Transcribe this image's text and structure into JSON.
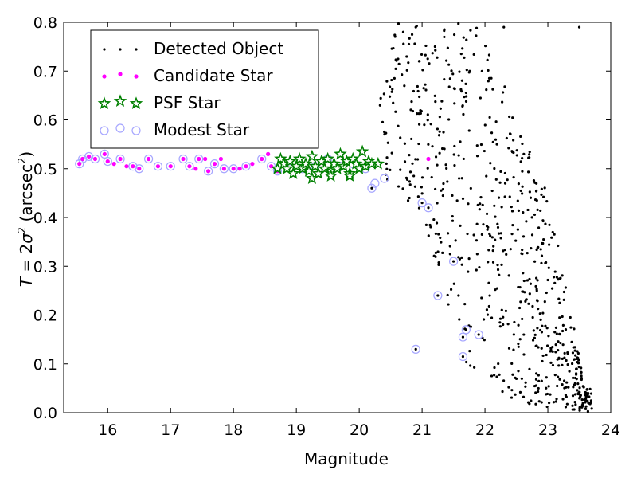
{
  "chart_data": {
    "type": "scatter",
    "xlabel": "Magnitude",
    "ylabel_parts": {
      "T": "T",
      "eq": " = 2",
      "sigma": "σ",
      "sq": "2",
      "unit_open": " (arcsec",
      "unit_sq": "2",
      "unit_close": ")"
    },
    "xlim": [
      15.3,
      24.0
    ],
    "ylim": [
      0.0,
      0.8
    ],
    "xticks": [
      16,
      17,
      18,
      19,
      20,
      21,
      22,
      23,
      24
    ],
    "yticks": [
      0.0,
      0.1,
      0.2,
      0.3,
      0.4,
      0.5,
      0.6,
      0.7,
      0.8
    ],
    "legend_location": "upper-left",
    "series": [
      {
        "name": "Detected Object",
        "marker": "dot",
        "color": "#000000",
        "generated": {
          "count": 700,
          "x_range": [
            20.3,
            23.7
          ],
          "y_upper": [
            [
              20.3,
              0.8
            ],
            [
              22.0,
              0.8
            ],
            [
              22.5,
              0.6
            ],
            [
              23.0,
              0.45
            ],
            [
              23.6,
              0.05
            ]
          ],
          "y_lower": [
            [
              20.3,
              0.48
            ],
            [
              21.0,
              0.4
            ],
            [
              21.7,
              0.1
            ],
            [
              22.5,
              0.02
            ],
            [
              23.7,
              0.0
            ]
          ]
        },
        "points": [
          [
            21.0,
            0.43
          ],
          [
            21.1,
            0.42
          ],
          [
            20.2,
            0.46
          ],
          [
            20.9,
            0.13
          ],
          [
            21.5,
            0.31
          ],
          [
            21.25,
            0.24
          ],
          [
            21.7,
            0.17
          ],
          [
            21.9,
            0.16
          ],
          [
            21.65,
            0.155
          ],
          [
            21.65,
            0.115
          ],
          [
            23.5,
            0.79
          ],
          [
            22.3,
            0.79
          ],
          [
            20.9,
            0.79
          ]
        ]
      },
      {
        "name": "Candidate Star",
        "marker": "circle-small",
        "color": "#ff00ff",
        "points": [
          [
            15.55,
            0.51
          ],
          [
            15.6,
            0.52
          ],
          [
            15.7,
            0.525
          ],
          [
            15.8,
            0.52
          ],
          [
            15.95,
            0.53
          ],
          [
            16.0,
            0.515
          ],
          [
            16.1,
            0.51
          ],
          [
            16.2,
            0.52
          ],
          [
            16.3,
            0.505
          ],
          [
            16.4,
            0.505
          ],
          [
            16.5,
            0.5
          ],
          [
            16.65,
            0.52
          ],
          [
            16.8,
            0.505
          ],
          [
            17.0,
            0.505
          ],
          [
            17.2,
            0.52
          ],
          [
            17.3,
            0.505
          ],
          [
            17.45,
            0.52
          ],
          [
            17.55,
            0.52
          ],
          [
            17.7,
            0.51
          ],
          [
            17.8,
            0.52
          ],
          [
            17.85,
            0.5
          ],
          [
            17.6,
            0.495
          ],
          [
            17.4,
            0.5
          ],
          [
            18.0,
            0.5
          ],
          [
            18.1,
            0.5
          ],
          [
            18.2,
            0.505
          ],
          [
            18.3,
            0.51
          ],
          [
            18.45,
            0.52
          ],
          [
            18.55,
            0.53
          ],
          [
            18.6,
            0.505
          ],
          [
            18.7,
            0.495
          ],
          [
            21.1,
            0.52
          ]
        ]
      },
      {
        "name": "PSF Star",
        "marker": "star",
        "color": "#008000",
        "points": [
          [
            18.7,
            0.5
          ],
          [
            18.75,
            0.52
          ],
          [
            18.8,
            0.51
          ],
          [
            18.85,
            0.5
          ],
          [
            18.9,
            0.515
          ],
          [
            18.95,
            0.49
          ],
          [
            19.0,
            0.505
          ],
          [
            19.05,
            0.52
          ],
          [
            19.1,
            0.5
          ],
          [
            19.15,
            0.51
          ],
          [
            19.2,
            0.495
          ],
          [
            19.25,
            0.525
          ],
          [
            19.3,
            0.505
          ],
          [
            19.35,
            0.49
          ],
          [
            19.4,
            0.515
          ],
          [
            19.45,
            0.5
          ],
          [
            19.5,
            0.52
          ],
          [
            19.55,
            0.495
          ],
          [
            19.6,
            0.51
          ],
          [
            19.65,
            0.5
          ],
          [
            19.7,
            0.53
          ],
          [
            19.75,
            0.505
          ],
          [
            19.8,
            0.515
          ],
          [
            19.85,
            0.49
          ],
          [
            19.9,
            0.52
          ],
          [
            19.95,
            0.51
          ],
          [
            20.0,
            0.5
          ],
          [
            20.05,
            0.535
          ],
          [
            20.1,
            0.505
          ],
          [
            20.15,
            0.515
          ],
          [
            20.2,
            0.51
          ],
          [
            20.3,
            0.51
          ],
          [
            19.25,
            0.48
          ],
          [
            19.55,
            0.485
          ],
          [
            19.85,
            0.485
          ]
        ]
      },
      {
        "name": "Modest Star",
        "marker": "ring",
        "color": "#a6a6ff",
        "points": [
          [
            15.55,
            0.51
          ],
          [
            15.6,
            0.52
          ],
          [
            15.7,
            0.525
          ],
          [
            15.8,
            0.52
          ],
          [
            15.95,
            0.53
          ],
          [
            16.0,
            0.515
          ],
          [
            16.2,
            0.52
          ],
          [
            16.4,
            0.505
          ],
          [
            16.5,
            0.5
          ],
          [
            16.65,
            0.52
          ],
          [
            16.8,
            0.505
          ],
          [
            17.0,
            0.505
          ],
          [
            17.2,
            0.52
          ],
          [
            17.3,
            0.505
          ],
          [
            17.45,
            0.52
          ],
          [
            17.6,
            0.495
          ],
          [
            17.7,
            0.51
          ],
          [
            17.85,
            0.5
          ],
          [
            18.0,
            0.5
          ],
          [
            18.2,
            0.505
          ],
          [
            18.45,
            0.52
          ],
          [
            18.6,
            0.505
          ],
          [
            18.7,
            0.495
          ],
          [
            18.9,
            0.5
          ],
          [
            19.1,
            0.5
          ],
          [
            19.3,
            0.505
          ],
          [
            19.5,
            0.52
          ],
          [
            19.7,
            0.505
          ],
          [
            19.9,
            0.51
          ],
          [
            20.1,
            0.5
          ],
          [
            20.25,
            0.47
          ],
          [
            20.4,
            0.48
          ],
          [
            20.2,
            0.46
          ],
          [
            21.0,
            0.43
          ],
          [
            21.1,
            0.42
          ],
          [
            20.9,
            0.13
          ],
          [
            21.5,
            0.31
          ],
          [
            21.25,
            0.24
          ],
          [
            21.7,
            0.17
          ],
          [
            21.9,
            0.16
          ],
          [
            21.65,
            0.155
          ],
          [
            21.65,
            0.115
          ]
        ]
      }
    ]
  }
}
